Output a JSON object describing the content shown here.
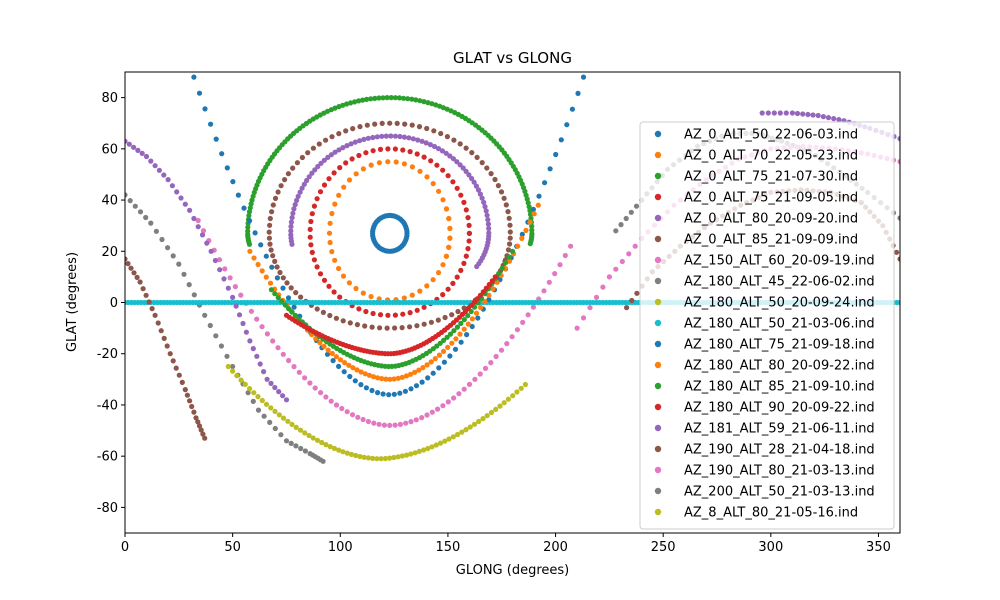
{
  "chart_data": {
    "type": "scatter",
    "title": "GLAT vs GLONG",
    "xlabel": "GLONG (degrees)",
    "ylabel": "GLAT (degrees)",
    "xlim": [
      0,
      360
    ],
    "ylim": [
      -90,
      90
    ],
    "xticks": [
      0,
      50,
      100,
      150,
      200,
      250,
      300,
      350
    ],
    "yticks": [
      -80,
      -60,
      -40,
      -20,
      0,
      20,
      40,
      60,
      80
    ],
    "grid": false,
    "legend_position": "right",
    "series": [
      {
        "name": "AZ_0_ALT_50_22-06-03.ind",
        "color": "#1f77b4",
        "kind": "circle",
        "cx": 123,
        "cy": 27,
        "rx": 8,
        "ry": 7
      },
      {
        "name": "AZ_0_ALT_70_22-05-23.ind",
        "color": "#ff7f0e",
        "kind": "loop",
        "cx": 123,
        "cy": 27,
        "r": 28,
        "peak": 55,
        "min": 1,
        "t0": -0.35,
        "t1": 6.63
      },
      {
        "name": "AZ_0_ALT_75_21-07-30.ind",
        "color": "#2ca02c",
        "kind": "loop",
        "cx": 123,
        "cy": 27,
        "r": 66,
        "peak": 80,
        "min": 0,
        "t0": -0.15,
        "t1": 3.3
      },
      {
        "name": "AZ_0_ALT_75_21-09-05.ind",
        "color": "#d62728",
        "kind": "loop",
        "cx": 123,
        "cy": 27,
        "r": 37,
        "peak": 60,
        "min": -5,
        "t0": 0,
        "t1": 6.283
      },
      {
        "name": "AZ_0_ALT_80_20-09-20.ind",
        "color": "#9467bd",
        "kind": "loop",
        "cx": 123,
        "cy": 27,
        "r": 46,
        "peak": 65,
        "min": 0,
        "t0": -0.5,
        "t1": 3.3
      },
      {
        "name": "AZ_0_ALT_85_21-09-09.ind",
        "color": "#8c564b",
        "kind": "loop",
        "cx": 123,
        "cy": 27,
        "r": 56,
        "peak": 70,
        "min": -10,
        "t0": -0.3,
        "t1": 6.0
      },
      {
        "name": "AZ_150_ALT_60_20-09-19.ind",
        "color": "#e377c2",
        "kind": "bowl",
        "x0": 34,
        "x1": 207,
        "xmin": 123,
        "ymin": -48,
        "y0": 32,
        "y1": 22
      },
      {
        "name": "AZ_180_ALT_45_22-06-02.ind",
        "color": "#7f7f7f",
        "kind": "segments",
        "segments": [
          {
            "x": [
              0,
              12,
              25,
              37,
              50,
              62,
              75,
              86,
              92
            ],
            "y": [
              42,
              31,
              15,
              -5,
              -25,
              -42,
              -54,
              -59,
              -62
            ]
          },
          {
            "x": [
              228,
              240,
              252,
              266,
              280,
              294,
              305,
              318,
              332,
              345,
              360
            ],
            "y": [
              28,
              40,
              52,
              61,
              66,
              66,
              63,
              59,
              51,
              43,
              33
            ]
          }
        ]
      },
      {
        "name": "AZ_180_ALT_50_20-09-24.ind",
        "color": "#bcbd22",
        "kind": "bowl",
        "x0": 48,
        "x1": 186,
        "xmin": 118,
        "ymin": -61,
        "y0": -25,
        "y1": -32
      },
      {
        "name": "AZ_180_ALT_50_21-03-06.ind",
        "color": "#17becf",
        "kind": "line",
        "y": 0
      },
      {
        "name": "AZ_180_ALT_75_21-09-18.ind",
        "color": "#1f77b4",
        "kind": "bowl",
        "x0": 32,
        "x1": 213,
        "xmin": 123,
        "ymin": -36,
        "y0": 88,
        "y1": 88
      },
      {
        "name": "AZ_180_ALT_80_20-09-22.ind",
        "color": "#ff7f0e",
        "kind": "bowl",
        "x0": 58,
        "x1": 192,
        "xmin": 123,
        "ymin": -30,
        "y0": 20,
        "y1": 38
      },
      {
        "name": "AZ_180_ALT_85_21-09-10.ind",
        "color": "#2ca02c",
        "kind": "bowl",
        "x0": 68,
        "x1": 180,
        "xmin": 123,
        "ymin": -25,
        "y0": 5,
        "y1": 20
      },
      {
        "name": "AZ_180_ALT_90_20-09-22.ind",
        "color": "#d62728",
        "kind": "bowl",
        "x0": 75,
        "x1": 172,
        "xmin": 123,
        "ymin": -20,
        "y0": -5,
        "y1": 10
      },
      {
        "name": "AZ_181_ALT_59_21-06-11.ind",
        "color": "#9467bd",
        "kind": "segments",
        "segments": [
          {
            "x": [
              0,
              10,
              20,
              30,
              40,
              50,
              58,
              66,
              75
            ],
            "y": [
              63,
              57,
              48,
              36,
              20,
              2,
              -15,
              -30,
              -38
            ]
          },
          {
            "x": [
              296,
              310,
              322,
              334,
              346,
              360
            ],
            "y": [
              74,
              74,
              73,
              71,
              68,
              64
            ]
          }
        ]
      },
      {
        "name": "AZ_190_ALT_28_21-04-18.ind",
        "color": "#8c564b",
        "kind": "segments",
        "segments": [
          {
            "x": [
              0,
              7,
              14,
              21,
              28,
              33,
              37
            ],
            "y": [
              17,
              8,
              -5,
              -20,
              -34,
              -45,
              -53
            ]
          },
          {
            "x": [
              233,
              245,
              258,
              272,
              286,
              300,
              314,
              328,
              342,
              352,
              360
            ],
            "y": [
              -2,
              12,
              22,
              31,
              38,
              43,
              44,
              43,
              39,
              30,
              17
            ]
          }
        ]
      },
      {
        "name": "AZ_190_ALT_80_21-03-13.ind",
        "color": "#e377c2",
        "kind": "segments",
        "segments": [
          {
            "x": [
              210,
              225,
              240,
              255,
              270,
              285,
              300,
              315,
              330,
              345,
              360
            ],
            "y": [
              -10,
              10,
              25,
              38,
              48,
              56,
              60,
              61,
              60,
              58,
              55
            ]
          }
        ]
      },
      {
        "name": "AZ_200_ALT_50_21-03-13.ind",
        "color": "#7f7f7f",
        "kind": "segments",
        "segments": []
      },
      {
        "name": "AZ_8_ALT_80_21-05-16.ind",
        "color": "#bcbd22",
        "kind": "segments",
        "segments": []
      }
    ]
  }
}
